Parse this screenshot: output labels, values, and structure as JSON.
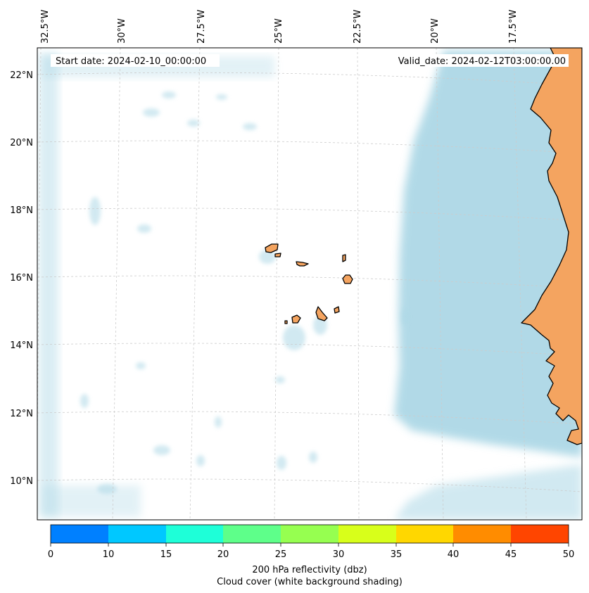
{
  "map": {
    "start_date": "Start date: 2024-02-10_00:00:00",
    "valid_date": "Valid_date: 2024-02-12T03:00:00.00",
    "lon_labels": [
      "32.5°W",
      "30°W",
      "27.5°W",
      "25°W",
      "22.5°W",
      "20°W",
      "17.5°W"
    ],
    "lat_labels": [
      "22°N",
      "20°N",
      "18°N",
      "16°N",
      "14°N",
      "12°N",
      "10°N"
    ],
    "colors": {
      "land": "#f4a460",
      "cloud": "#add8e6",
      "coastline": "#000000",
      "gridline": "#cccccc"
    }
  },
  "colorbar": {
    "ticks": [
      "0",
      "10",
      "15",
      "20",
      "25",
      "30",
      "35",
      "40",
      "45",
      "50"
    ],
    "colors": [
      "#0080ff",
      "#00c8ff",
      "#1effd8",
      "#5eff8a",
      "#96ff50",
      "#d8ff1a",
      "#ffd700",
      "#ff8c00",
      "#ff4500"
    ],
    "label_line1": "200 hPa reflectivity (dbz)",
    "label_line2": "Cloud cover (white background shading)"
  }
}
